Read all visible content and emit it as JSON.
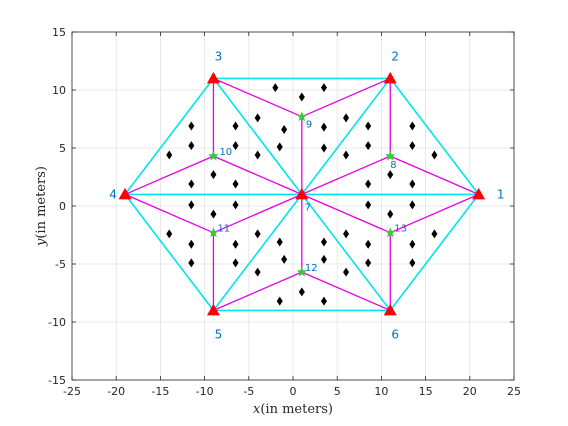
{
  "chart_data": {
    "type": "scatter",
    "xlabel_var": "x",
    "xlabel_unit": "(in meters)",
    "ylabel_var": "y",
    "ylabel_unit": "(in meters)",
    "xlim": [
      -25,
      25
    ],
    "ylim": [
      -15,
      15
    ],
    "xticks": [
      -25,
      -20,
      -15,
      -10,
      -5,
      0,
      5,
      10,
      15,
      20,
      25
    ],
    "yticks": [
      -15,
      -10,
      -5,
      0,
      5,
      10,
      15
    ],
    "grid": true,
    "colors": {
      "hexagon": "#00e5ee",
      "triangles": "#e600e6",
      "vertex_markers": "#ff0000",
      "centroid_markers": "#33cc33",
      "diamonds": "#000000",
      "labels": "#0072bd"
    },
    "vertex_points": [
      {
        "label": "1",
        "x": 21,
        "y": 1
      },
      {
        "label": "2",
        "x": 11,
        "y": 11
      },
      {
        "label": "3",
        "x": -9,
        "y": 11
      },
      {
        "label": "4",
        "x": -19,
        "y": 1
      },
      {
        "label": "5",
        "x": -9,
        "y": -9
      },
      {
        "label": "6",
        "x": 11,
        "y": -9
      },
      {
        "label": "7",
        "x": 1,
        "y": 1
      }
    ],
    "centroid_points": [
      {
        "label": "8",
        "x": 11,
        "y": 4.3
      },
      {
        "label": "9",
        "x": 1,
        "y": 7.7
      },
      {
        "label": "10",
        "x": -9,
        "y": 4.3
      },
      {
        "label": "11",
        "x": -9,
        "y": -2.3
      },
      {
        "label": "12",
        "x": 1,
        "y": -5.7
      },
      {
        "label": "13",
        "x": 11,
        "y": -2.3
      }
    ],
    "diamond_points": [
      {
        "x": -2,
        "y": 10.2
      },
      {
        "x": 1,
        "y": 9.4
      },
      {
        "x": 3.5,
        "y": 10.2
      },
      {
        "x": -4,
        "y": 7.6
      },
      {
        "x": -1,
        "y": 6.6
      },
      {
        "x": 3.5,
        "y": 6.8
      },
      {
        "x": 6,
        "y": 7.6
      },
      {
        "x": -1.5,
        "y": 5.1
      },
      {
        "x": 3.5,
        "y": 5.0
      },
      {
        "x": -11.5,
        "y": 6.9
      },
      {
        "x": -6.5,
        "y": 6.9
      },
      {
        "x": -11.5,
        "y": 5.2
      },
      {
        "x": -6.5,
        "y": 5.2
      },
      {
        "x": -14,
        "y": 4.4
      },
      {
        "x": -4,
        "y": 4.4
      },
      {
        "x": -9,
        "y": 2.7
      },
      {
        "x": -11.5,
        "y": 1.9
      },
      {
        "x": -6.5,
        "y": 1.9
      },
      {
        "x": 8.5,
        "y": 6.9
      },
      {
        "x": 13.5,
        "y": 6.9
      },
      {
        "x": 8.5,
        "y": 5.2
      },
      {
        "x": 13.5,
        "y": 5.2
      },
      {
        "x": 6,
        "y": 4.4
      },
      {
        "x": 16,
        "y": 4.4
      },
      {
        "x": 11,
        "y": 2.7
      },
      {
        "x": 8.5,
        "y": 1.9
      },
      {
        "x": 13.5,
        "y": 1.9
      },
      {
        "x": -11.5,
        "y": 0.1
      },
      {
        "x": -6.5,
        "y": 0.1
      },
      {
        "x": -9,
        "y": -0.7
      },
      {
        "x": -14,
        "y": -2.4
      },
      {
        "x": -4,
        "y": -2.4
      },
      {
        "x": -11.5,
        "y": -3.3
      },
      {
        "x": -6.5,
        "y": -3.3
      },
      {
        "x": -11.5,
        "y": -4.9
      },
      {
        "x": -6.5,
        "y": -4.9
      },
      {
        "x": 8.5,
        "y": 0.1
      },
      {
        "x": 13.5,
        "y": 0.1
      },
      {
        "x": 11,
        "y": -0.7
      },
      {
        "x": 6,
        "y": -2.4
      },
      {
        "x": 16,
        "y": -2.4
      },
      {
        "x": 8.5,
        "y": -3.3
      },
      {
        "x": 13.5,
        "y": -3.3
      },
      {
        "x": 8.5,
        "y": -4.9
      },
      {
        "x": 13.5,
        "y": -4.9
      },
      {
        "x": -1.5,
        "y": -3.1
      },
      {
        "x": 3.5,
        "y": -3.1
      },
      {
        "x": -1,
        "y": -4.6
      },
      {
        "x": 3.5,
        "y": -4.6
      },
      {
        "x": -4,
        "y": -5.7
      },
      {
        "x": 6,
        "y": -5.7
      },
      {
        "x": 1,
        "y": -7.4
      },
      {
        "x": -1.5,
        "y": -8.2
      },
      {
        "x": 3.5,
        "y": -8.2
      }
    ],
    "hexagon_edges": [
      [
        1,
        2
      ],
      [
        2,
        3
      ],
      [
        3,
        4
      ],
      [
        4,
        5
      ],
      [
        5,
        6
      ],
      [
        6,
        1
      ]
    ],
    "spokes": [
      [
        7,
        1
      ],
      [
        7,
        2
      ],
      [
        7,
        3
      ],
      [
        7,
        4
      ],
      [
        7,
        5
      ],
      [
        7,
        6
      ]
    ],
    "triangle_edges": [
      [
        8,
        1
      ],
      [
        8,
        2
      ],
      [
        8,
        7
      ],
      [
        9,
        2
      ],
      [
        9,
        3
      ],
      [
        9,
        7
      ],
      [
        10,
        3
      ],
      [
        10,
        4
      ],
      [
        10,
        7
      ],
      [
        11,
        4
      ],
      [
        11,
        5
      ],
      [
        11,
        7
      ],
      [
        12,
        5
      ],
      [
        12,
        6
      ],
      [
        12,
        7
      ],
      [
        13,
        6
      ],
      [
        13,
        1
      ],
      [
        13,
        7
      ]
    ]
  }
}
